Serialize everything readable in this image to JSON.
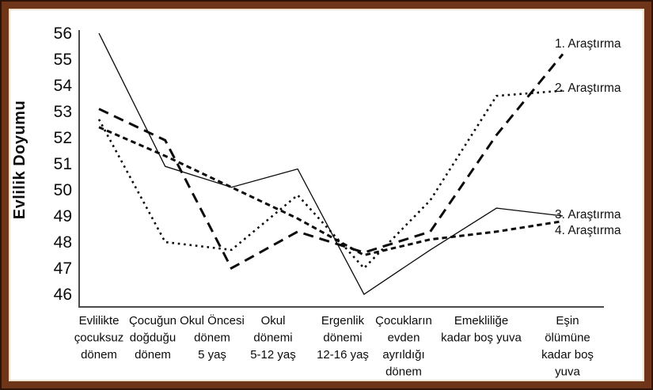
{
  "frame": {
    "border_color": "#6f3518",
    "border_dark_edge": "#2e1408",
    "border_light_edge": "#ece2d0",
    "background": "#ffffff"
  },
  "chart_data": {
    "type": "line",
    "title": "",
    "xlabel": "",
    "ylabel": "Evlilik Doyumu",
    "ylim": [
      46,
      56
    ],
    "ytick_step": 1,
    "yticks": [
      46,
      47,
      48,
      49,
      50,
      51,
      52,
      53,
      54,
      55,
      56
    ],
    "grid": false,
    "legend_position": "right-inline",
    "line_color": "#0a0a0a",
    "axis_color": "#4a4a4a",
    "categories": [
      [
        "Evlilikte",
        "çocuksuz",
        "dönem"
      ],
      [
        "Çocuğun",
        "doğduğu",
        "dönem"
      ],
      [
        "Okul Öncesi",
        "dönem",
        "5 yaş"
      ],
      [
        "Okul",
        "dönemi",
        "5-12 yaş"
      ],
      [
        "Ergenlik",
        "dönemi",
        "12-16 yaş"
      ],
      [
        "Çocukların",
        "evden",
        "ayrıldığı",
        "dönem"
      ],
      [
        "Emekliliğe",
        "kadar boş yuva"
      ],
      [
        "Eşin",
        "ölümüne",
        "kadar boş",
        "yuva"
      ]
    ],
    "series": [
      {
        "name": "1. Araştırma",
        "line_style": "long-dash",
        "values": [
          53.1,
          51.9,
          47.0,
          48.4,
          47.6,
          48.4,
          52.1,
          55.2
        ]
      },
      {
        "name": "2. Araştırma",
        "line_style": "dotted",
        "values": [
          52.7,
          48.0,
          47.7,
          49.8,
          47.0,
          49.6,
          53.6,
          53.8
        ]
      },
      {
        "name": "3. Araştırma",
        "line_style": "solid-thin",
        "values": [
          56.0,
          50.9,
          50.1,
          50.8,
          46.0,
          47.7,
          49.3,
          49.0
        ]
      },
      {
        "name": "4. Araştırma",
        "line_style": "short-dash",
        "values": [
          52.4,
          51.3,
          50.1,
          48.9,
          47.5,
          48.1,
          48.4,
          48.8
        ]
      }
    ]
  }
}
